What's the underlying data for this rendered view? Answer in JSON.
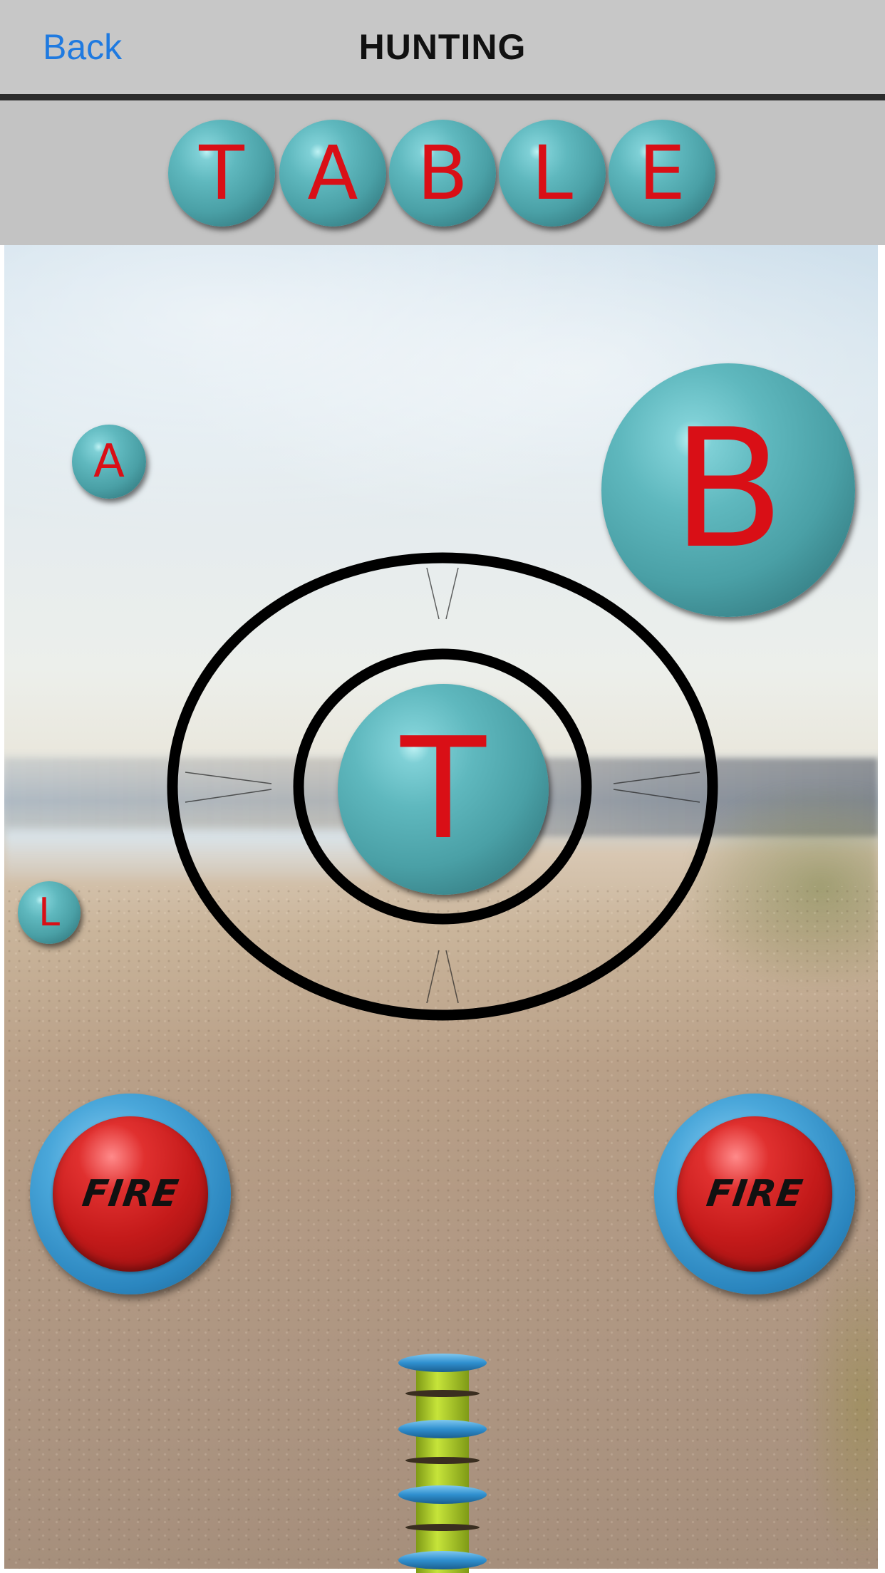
{
  "nav": {
    "back_label": "Back",
    "title": "HUNTING"
  },
  "word_tray": {
    "letters": [
      "T",
      "A",
      "B",
      "L",
      "E"
    ]
  },
  "targets": {
    "a": "A",
    "b": "B",
    "t": "T",
    "l": "L"
  },
  "fire_buttons": {
    "left_label": "FIRE",
    "right_label": "FIRE"
  },
  "colors": {
    "ball_teal": "#4aa0a6",
    "letter_red": "#d90f16",
    "back_blue": "#1f7ae0",
    "nav_gray": "#c7c7c7",
    "fire_red": "#c41a1a",
    "fire_ring_blue": "#2b86bf",
    "spring_green": "#a8cc2a"
  }
}
